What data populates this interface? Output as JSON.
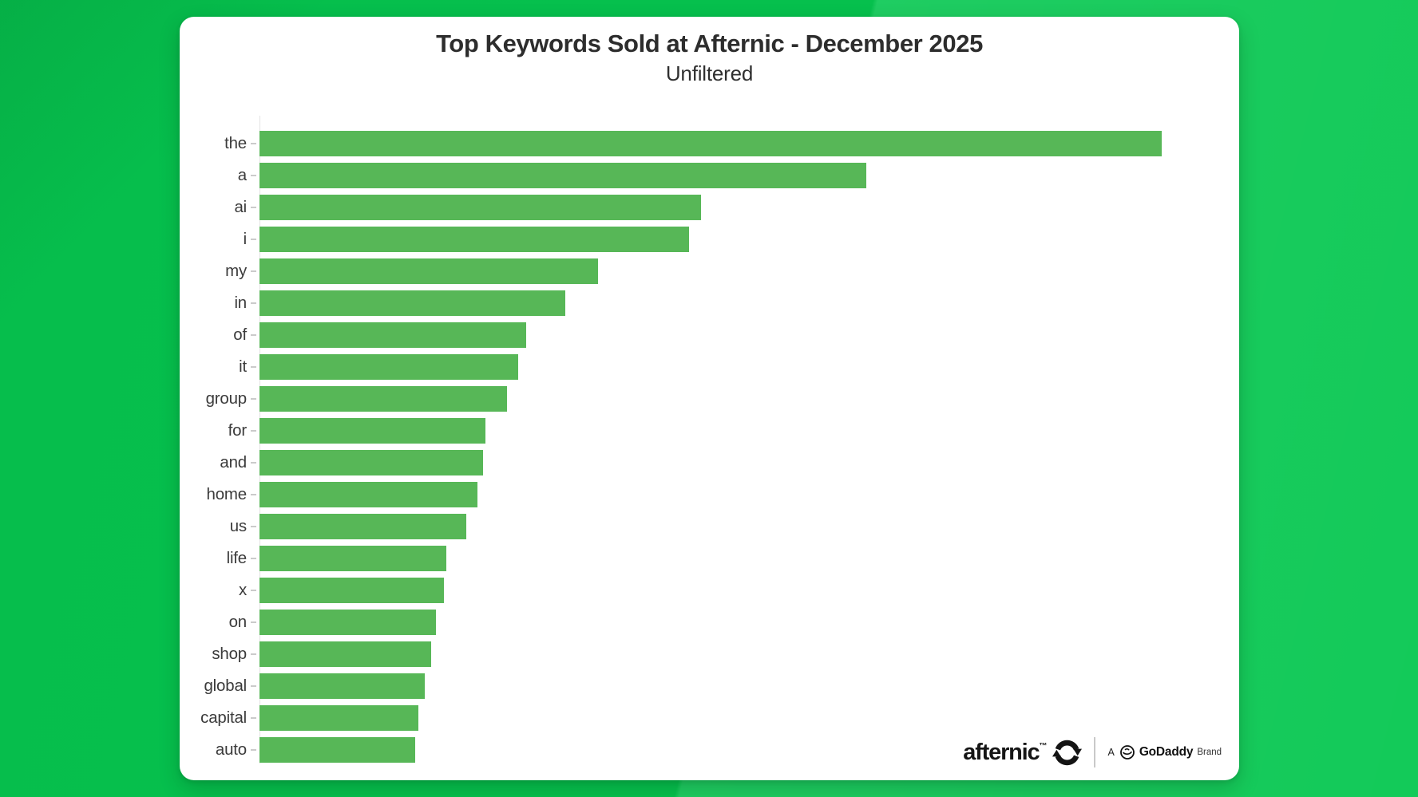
{
  "chart_data": {
    "type": "bar",
    "orientation": "horizontal",
    "title": "Top Keywords Sold at Afternic - December 2025",
    "subtitle": "Unfiltered",
    "categories": [
      "the",
      "a",
      "ai",
      "i",
      "my",
      "in",
      "of",
      "it",
      "group",
      "for",
      "and",
      "home",
      "us",
      "life",
      "x",
      "on",
      "shop",
      "global",
      "capital",
      "auto"
    ],
    "values_relative_pct": [
      100,
      67.3,
      48.9,
      47.6,
      37.5,
      33.9,
      29.6,
      28.7,
      27.4,
      25.0,
      24.8,
      24.2,
      22.9,
      20.7,
      20.4,
      19.6,
      19.0,
      18.3,
      17.6,
      17.3
    ],
    "value_axis_note": "no numeric axis shown; values are relative bar lengths (longest bar = 100)",
    "bar_color": "#57b757",
    "grid": false,
    "legend": false
  },
  "branding": {
    "afternic_wordmark": "afternic",
    "trademark_symbol": "™",
    "byline_prefix": "A",
    "byline_brand": "GoDaddy",
    "byline_suffix": "Brand"
  },
  "colors": {
    "background_green": "#06c750",
    "bar_green": "#57b757",
    "card_background": "#ffffff",
    "axis_line": "#e4e4e4",
    "tick_gray": "#cbcbcb"
  }
}
